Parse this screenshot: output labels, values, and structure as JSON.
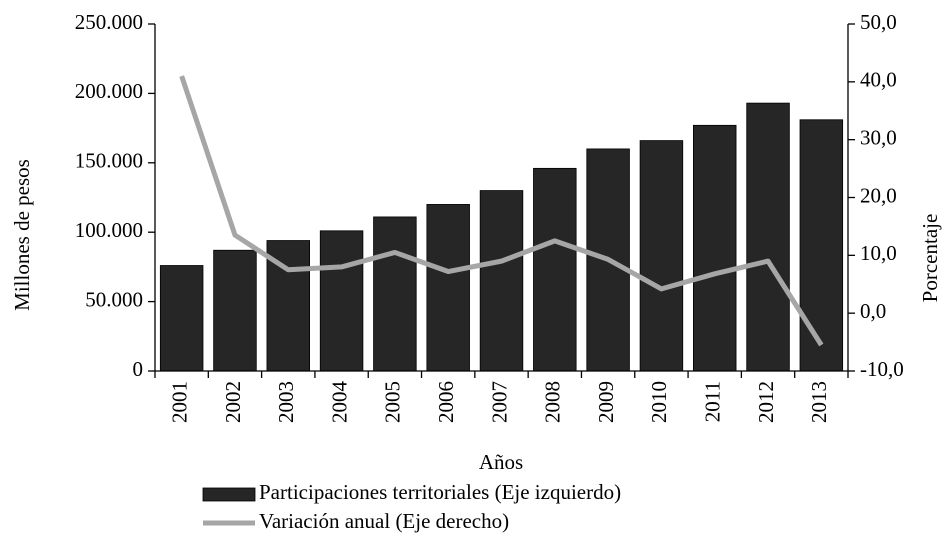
{
  "chart_data": {
    "type": "bar_line",
    "categories": [
      "2001",
      "2002",
      "2003",
      "2004",
      "2005",
      "2006",
      "2007",
      "2008",
      "2009",
      "2010",
      "2011",
      "2012",
      "2013"
    ],
    "series": [
      {
        "name": "Participaciones territoriales (Eje izquierdo)",
        "type": "bar",
        "color": "#262626",
        "values": [
          76000,
          87000,
          94000,
          101000,
          111000,
          120000,
          130000,
          146000,
          160000,
          166000,
          177000,
          193000,
          181000
        ]
      },
      {
        "name": "Variación anual (Eje derecho)",
        "type": "line",
        "axis": "y2",
        "color": "#a6a6a6",
        "values": [
          41,
          13.5,
          7.5,
          8,
          10.5,
          7.2,
          9,
          12.5,
          9.3,
          4.2,
          6.8,
          9,
          -5.5
        ]
      }
    ],
    "ylabel": "Millones de pesos",
    "y2label": "Porcentaje",
    "xlabel": "Años",
    "ylim": [
      0,
      250000
    ],
    "yticks": [
      0,
      {
        "value": 50000,
        "label": "50.000"
      },
      {
        "value": 100000,
        "label": "100.000"
      },
      {
        "value": 150000,
        "label": "150.000"
      },
      {
        "value": 200000,
        "label": "200.000"
      },
      {
        "value": 250000,
        "label": "250.000"
      }
    ],
    "y2lim": [
      -10,
      50
    ],
    "y2ticks": [
      {
        "value": -10,
        "label": "-10,0"
      },
      {
        "value": 0,
        "label": "0,0"
      },
      {
        "value": 10,
        "label": "10,0"
      },
      {
        "value": 20,
        "label": "20,0"
      },
      {
        "value": 30,
        "label": "30,0"
      },
      {
        "value": 40,
        "label": "40,0"
      },
      {
        "value": 50,
        "label": "50,0"
      }
    ]
  }
}
